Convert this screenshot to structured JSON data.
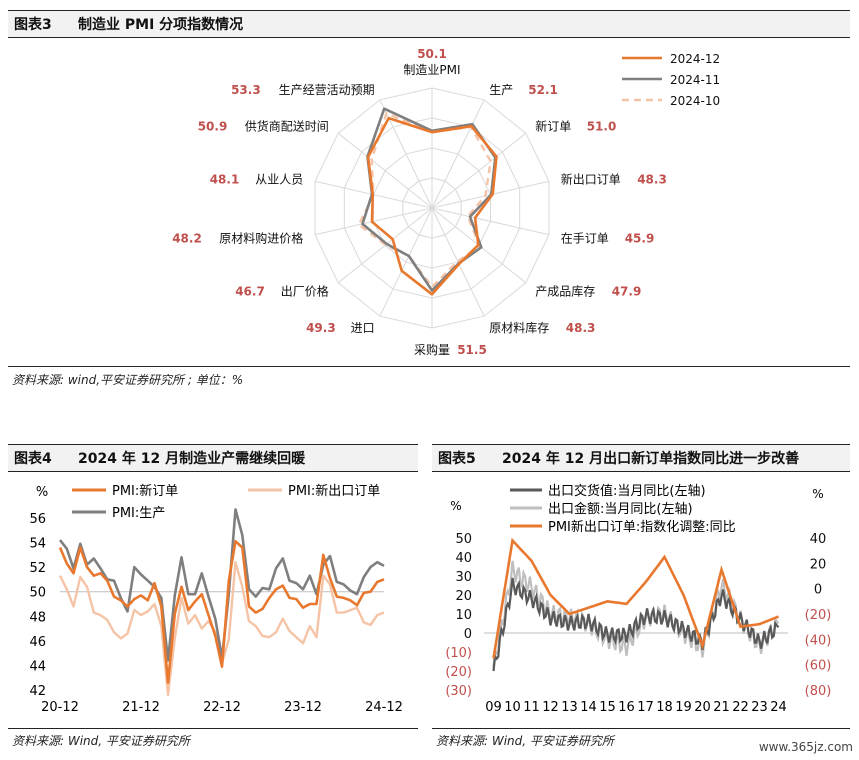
{
  "fig3": {
    "number": "图表3",
    "title": "制造业 PMI 分项指数情况",
    "source": "资料来源: wind,平安证券研究所 ; 单位：%"
  },
  "fig4": {
    "number": "图表4",
    "title": "2024 年 12 月制造业产需继续回暖",
    "source": "资料来源: Wind, 平安证券研究所"
  },
  "fig5": {
    "number": "图表5",
    "title": "2024 年 12 月出口新订单指数同比进一步改善",
    "source": "资料来源: Wind, 平安证券研究所"
  },
  "watermark": "www.365jz.com",
  "colors": {
    "orange": "#E8782E",
    "gray": "#7F7F7F",
    "light_orange": "#F5C3A6",
    "light_gray": "#BFBFBF",
    "dark_gray": "#595959",
    "red_label": "#C0504D"
  },
  "chart_data": [
    {
      "type": "radar",
      "axes": [
        "制造业PMI",
        "生产",
        "新订单",
        "新出口订单",
        "在手订单",
        "产成品库存",
        "原材料库存",
        "采购量",
        "进口",
        "出厂价格",
        "原材料购进价格",
        "从业人员",
        "供货商配送时间",
        "生产经营活动预期"
      ],
      "value_labels": [
        "50.1",
        "52.1",
        "51.0",
        "48.3",
        "45.9",
        "47.9",
        "48.3",
        "51.5",
        "49.3",
        "46.7",
        "48.2",
        "48.1",
        "50.9",
        "53.3"
      ],
      "rlim": [
        40,
        56
      ],
      "series": [
        {
          "name": "2024-12",
          "values": [
            50.1,
            52.1,
            51.0,
            48.3,
            45.9,
            47.9,
            48.3,
            51.5,
            49.3,
            46.7,
            48.2,
            48.1,
            50.9,
            53.3
          ]
        },
        {
          "name": "2024-11",
          "values": [
            50.3,
            52.4,
            50.8,
            48.1,
            45.2,
            48.4,
            48.2,
            51.0,
            47.1,
            47.7,
            49.5,
            48.2,
            51.0,
            54.7
          ]
        },
        {
          "name": "2024-10",
          "values": [
            50.1,
            52.0,
            50.0,
            47.3,
            44.9,
            48.1,
            47.9,
            50.5,
            47.1,
            47.9,
            50.0,
            48.0,
            50.3,
            54.0
          ]
        }
      ]
    },
    {
      "type": "line",
      "y_unit": "%",
      "ylim": [
        42,
        56
      ],
      "yticks": [
        "56",
        "54",
        "52",
        "50",
        "48",
        "46",
        "44",
        "42"
      ],
      "xticks": [
        "20-12",
        "21-12",
        "22-12",
        "23-12",
        "24-12"
      ],
      "x": [
        "20-12",
        "21-01",
        "21-02",
        "21-03",
        "21-04",
        "21-05",
        "21-06",
        "21-07",
        "21-08",
        "21-09",
        "21-10",
        "21-11",
        "21-12",
        "22-01",
        "22-02",
        "22-03",
        "22-04",
        "22-05",
        "22-06",
        "22-07",
        "22-08",
        "22-09",
        "22-10",
        "22-11",
        "22-12",
        "23-01",
        "23-02",
        "23-03",
        "23-04",
        "23-05",
        "23-06",
        "23-07",
        "23-08",
        "23-09",
        "23-10",
        "23-11",
        "23-12",
        "24-01",
        "24-02",
        "24-03",
        "24-04",
        "24-05",
        "24-06",
        "24-07",
        "24-08",
        "24-09",
        "24-10",
        "24-11",
        "24-12"
      ],
      "series": [
        {
          "name": "PMI:新订单",
          "values": [
            53.6,
            52.3,
            51.5,
            53.6,
            52.0,
            51.3,
            51.5,
            50.9,
            49.6,
            49.3,
            48.8,
            49.4,
            49.7,
            49.3,
            50.7,
            48.8,
            42.6,
            48.2,
            50.4,
            48.5,
            49.2,
            49.8,
            48.1,
            46.4,
            43.9,
            50.9,
            54.1,
            53.6,
            48.8,
            48.3,
            48.6,
            49.5,
            50.2,
            50.5,
            49.5,
            49.4,
            48.7,
            49.0,
            49.0,
            53.0,
            51.1,
            49.6,
            49.5,
            49.3,
            48.9,
            49.9,
            50.0,
            50.8,
            51.0
          ]
        },
        {
          "name": "PMI:新出口订单",
          "values": [
            51.3,
            50.2,
            48.8,
            51.2,
            50.4,
            48.3,
            48.1,
            47.7,
            46.7,
            46.2,
            46.6,
            48.5,
            48.1,
            48.4,
            49.0,
            47.2,
            41.6,
            46.2,
            49.5,
            47.4,
            48.1,
            47.0,
            47.6,
            46.7,
            44.2,
            46.1,
            52.4,
            50.4,
            47.6,
            47.2,
            46.4,
            46.3,
            46.7,
            47.8,
            46.8,
            46.3,
            45.8,
            47.2,
            46.3,
            51.3,
            50.6,
            48.3,
            48.3,
            48.5,
            48.7,
            47.5,
            47.3,
            48.1,
            48.3
          ]
        },
        {
          "name": "PMI:生产",
          "values": [
            54.2,
            53.5,
            51.9,
            53.9,
            52.2,
            52.7,
            51.9,
            51.0,
            50.9,
            49.5,
            48.4,
            52.0,
            51.4,
            50.9,
            50.4,
            49.5,
            44.4,
            49.7,
            52.8,
            49.8,
            49.8,
            51.5,
            49.6,
            47.8,
            44.6,
            49.8,
            56.7,
            54.6,
            50.2,
            49.6,
            50.3,
            50.2,
            51.9,
            52.7,
            50.9,
            50.7,
            50.2,
            51.3,
            49.8,
            52.2,
            52.9,
            50.8,
            50.6,
            50.1,
            49.8,
            51.2,
            52.0,
            52.4,
            52.1
          ]
        }
      ]
    },
    {
      "type": "line",
      "dual_axis": true,
      "left_unit": "%",
      "right_unit": "%",
      "left_ticks": [
        "50",
        "40",
        "30",
        "20",
        "10",
        "0",
        "(10)",
        "(20)",
        "(30)"
      ],
      "right_ticks": [
        "40",
        "20",
        "0",
        "(20)",
        "(40)",
        "(60)",
        "(80)"
      ],
      "left_ylim": [
        -30,
        50
      ],
      "right_ylim": [
        -80,
        40
      ],
      "xticks": [
        "09",
        "10",
        "11",
        "12",
        "13",
        "14",
        "15",
        "16",
        "17",
        "18",
        "19",
        "20",
        "21",
        "22",
        "23",
        "24"
      ],
      "x_annual": [
        "2009",
        "2010",
        "2011",
        "2012",
        "2013",
        "2014",
        "2015",
        "2016",
        "2017",
        "2018",
        "2019",
        "2020",
        "2021",
        "2022",
        "2023",
        "2024"
      ],
      "series": [
        {
          "name": "出口交货值:当月同比(左轴)",
          "axis": "left",
          "values": [
            -20,
            25,
            18,
            8,
            5,
            6,
            -1,
            -1,
            9,
            8,
            2,
            -5,
            20,
            7,
            -5,
            3
          ]
        },
        {
          "name": "出口金额:当月同比(左轴)",
          "axis": "left",
          "values": [
            -18,
            33,
            24,
            10,
            8,
            5,
            -3,
            -7,
            8,
            10,
            0,
            -8,
            25,
            7,
            -7,
            5
          ]
        },
        {
          "name": "PMI新出口订单:指数化调整:同比",
          "axis": "right",
          "values": [
            -55,
            38,
            22,
            -5,
            -20,
            -15,
            -10,
            -12,
            5,
            25,
            -5,
            -45,
            15,
            -30,
            -28,
            -22
          ]
        }
      ]
    }
  ]
}
